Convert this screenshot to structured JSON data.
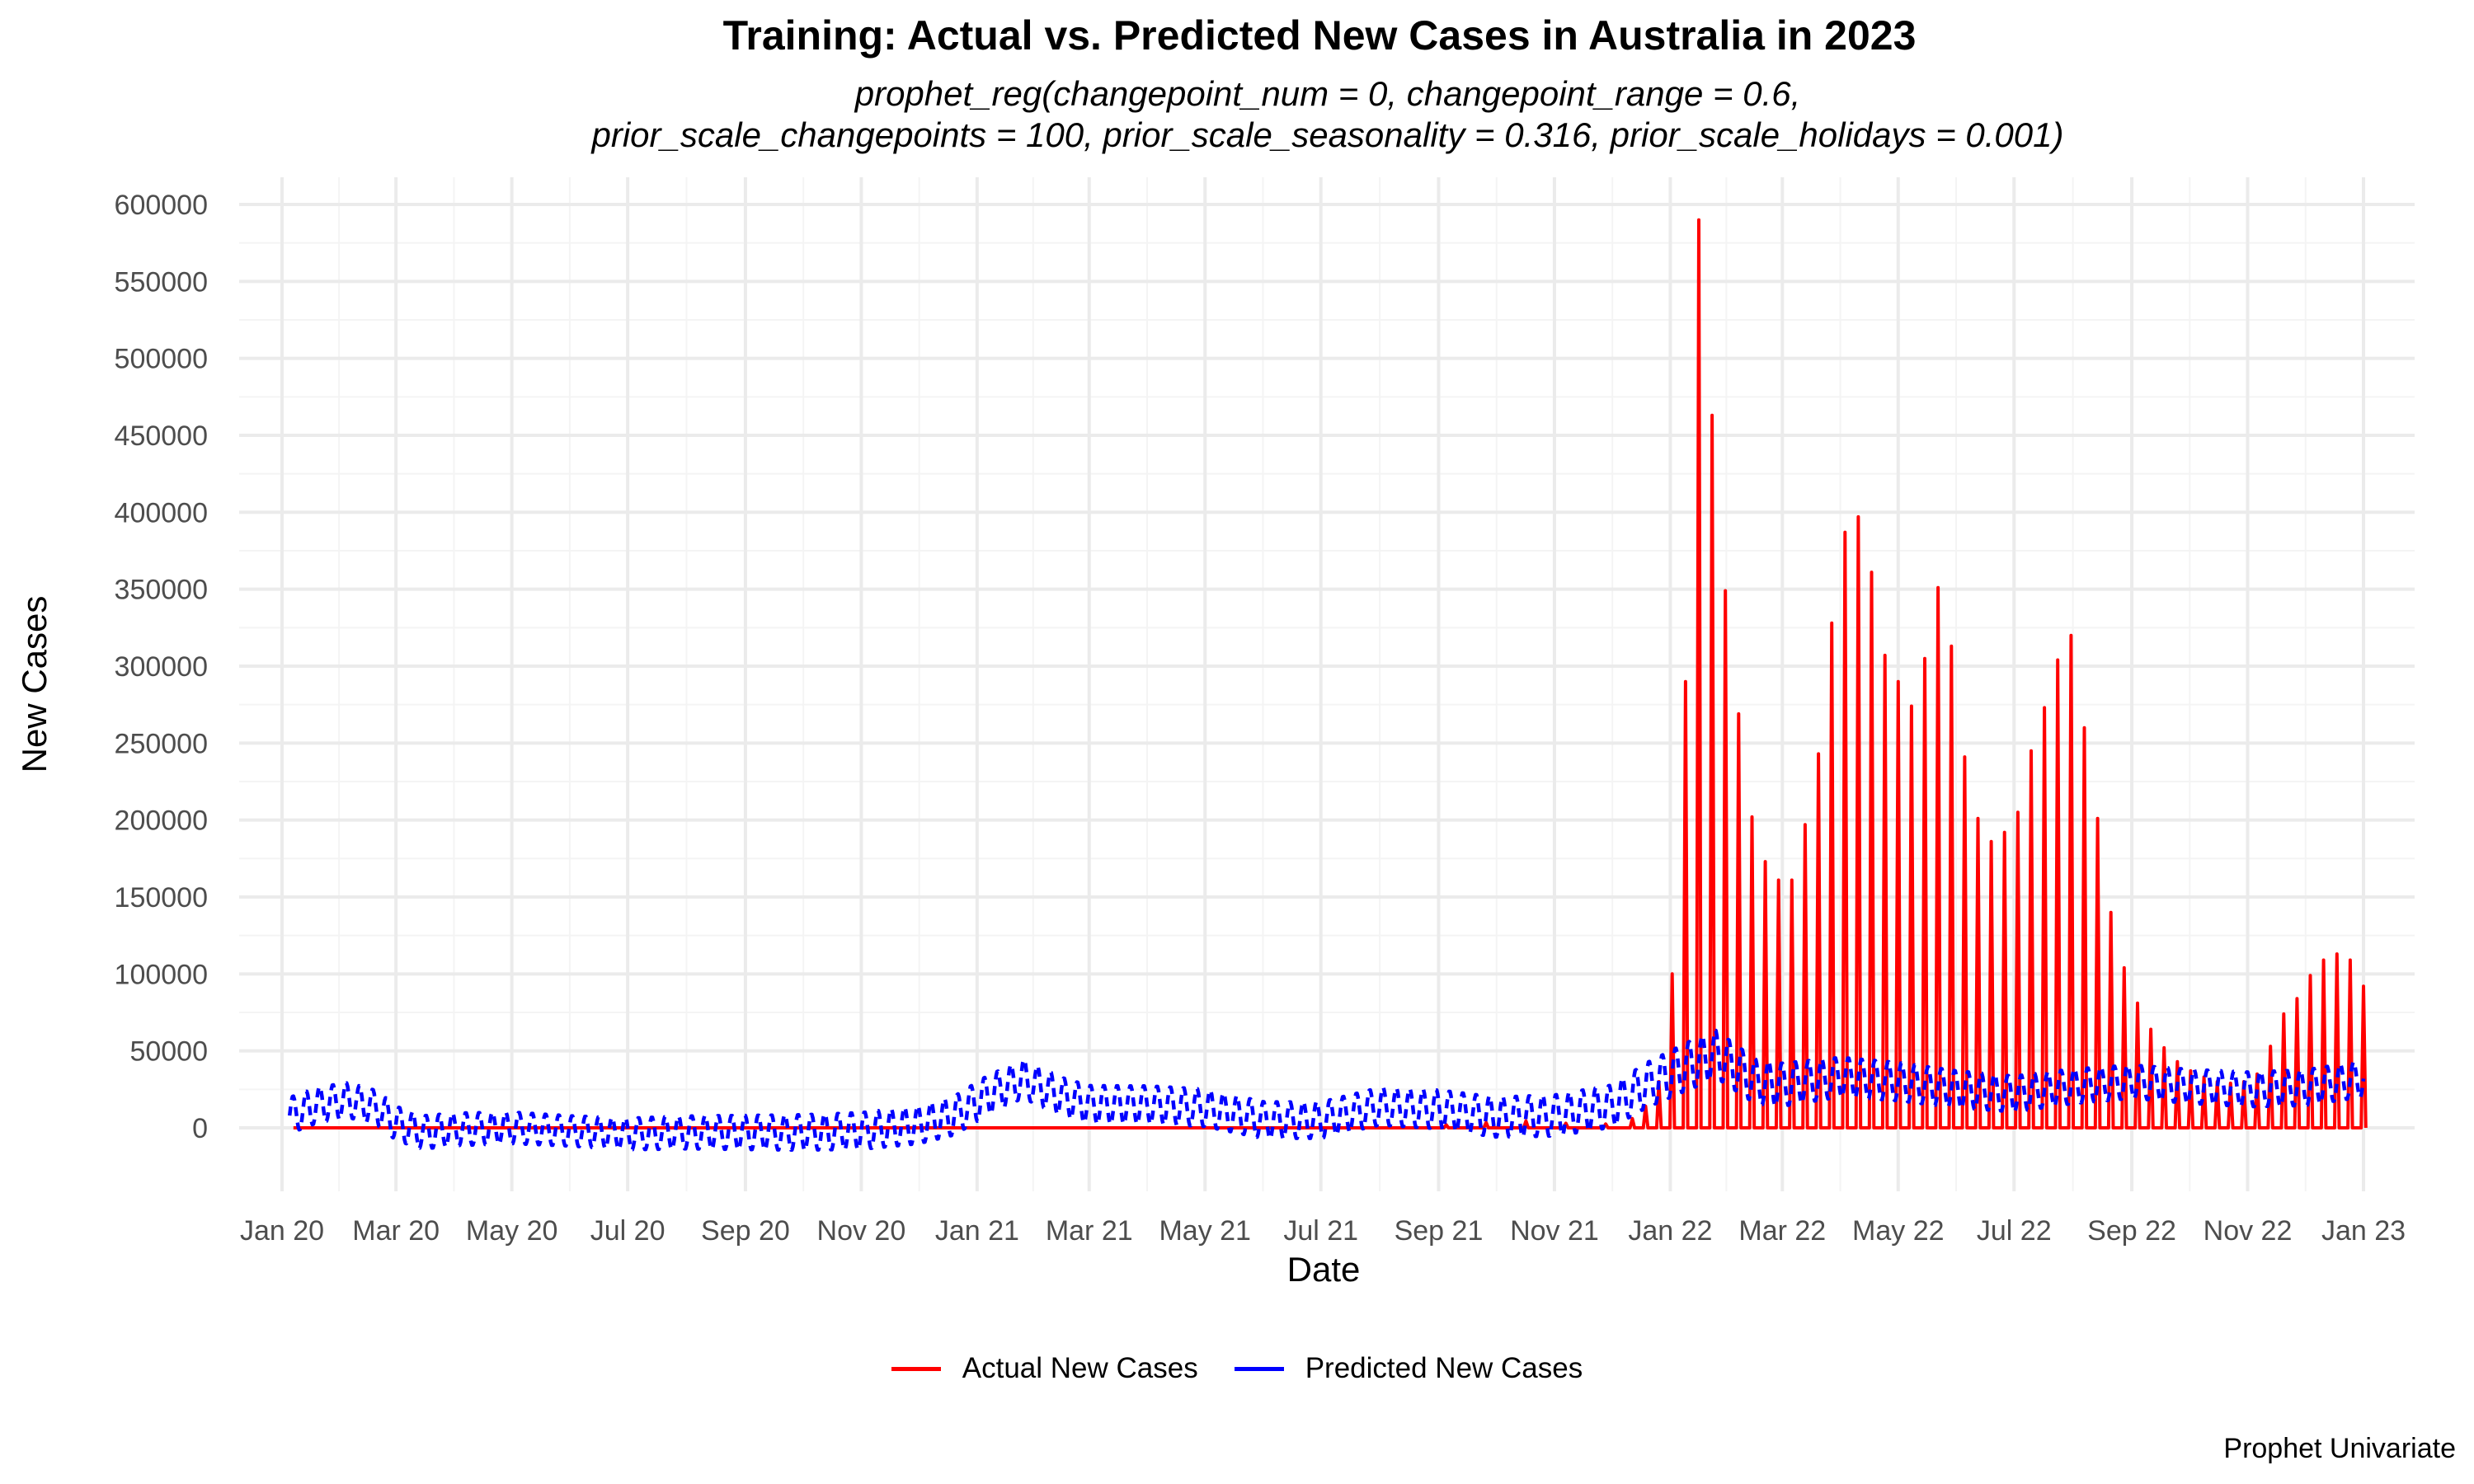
{
  "chart_data": {
    "type": "line",
    "title": "Training: Actual vs. Predicted New Cases in Australia in 2023",
    "subtitle": [
      "prophet_reg(changepoint_num = 0, changepoint_range = 0.6,",
      "prior_scale_changepoints = 100, prior_scale_seasonality = 0.316, prior_scale_holidays = 0.001)"
    ],
    "xlabel": "Date",
    "ylabel": "New Cases",
    "caption": "Prophet Univariate",
    "xlim": [
      "2020-01-01",
      "2023-01-01"
    ],
    "ylim": [
      0,
      600000
    ],
    "yticks": [
      0,
      50000,
      100000,
      150000,
      200000,
      250000,
      300000,
      350000,
      400000,
      450000,
      500000,
      550000,
      600000
    ],
    "xticks": [
      {
        "date": "2020-01-01",
        "label": "Jan 20"
      },
      {
        "date": "2020-03-01",
        "label": "Mar 20"
      },
      {
        "date": "2020-05-01",
        "label": "May 20"
      },
      {
        "date": "2020-07-01",
        "label": "Jul 20"
      },
      {
        "date": "2020-09-01",
        "label": "Sep 20"
      },
      {
        "date": "2020-11-01",
        "label": "Nov 20"
      },
      {
        "date": "2021-01-01",
        "label": "Jan 21"
      },
      {
        "date": "2021-03-01",
        "label": "Mar 21"
      },
      {
        "date": "2021-05-01",
        "label": "May 21"
      },
      {
        "date": "2021-07-01",
        "label": "Jul 21"
      },
      {
        "date": "2021-09-01",
        "label": "Sep 21"
      },
      {
        "date": "2021-11-01",
        "label": "Nov 21"
      },
      {
        "date": "2022-01-01",
        "label": "Jan 22"
      },
      {
        "date": "2022-03-01",
        "label": "Mar 22"
      },
      {
        "date": "2022-05-01",
        "label": "May 22"
      },
      {
        "date": "2022-07-01",
        "label": "Jul 22"
      },
      {
        "date": "2022-09-01",
        "label": "Sep 22"
      },
      {
        "date": "2022-11-01",
        "label": "Nov 22"
      },
      {
        "date": "2023-01-01",
        "label": "Jan 23"
      }
    ],
    "grid": true,
    "legend_position": "bottom",
    "series": [
      {
        "name": "Actual New Cases",
        "color": "#ff0000",
        "style": "weekly-spikes",
        "points": [
          [
            "2021-09-05",
            2000
          ],
          [
            "2021-09-26",
            3500
          ],
          [
            "2021-10-17",
            4500
          ],
          [
            "2021-11-07",
            3000
          ],
          [
            "2021-11-28",
            2500
          ],
          [
            "2021-12-12",
            6000
          ],
          [
            "2021-12-19",
            14000
          ],
          [
            "2021-12-26",
            30000
          ],
          [
            "2022-01-02",
            100000
          ],
          [
            "2022-01-09",
            290000
          ],
          [
            "2022-01-16",
            590000
          ],
          [
            "2022-01-23",
            463000
          ],
          [
            "2022-01-30",
            349000
          ],
          [
            "2022-02-06",
            269000
          ],
          [
            "2022-02-13",
            202000
          ],
          [
            "2022-02-20",
            173000
          ],
          [
            "2022-02-27",
            161000
          ],
          [
            "2022-03-06",
            161000
          ],
          [
            "2022-03-13",
            197000
          ],
          [
            "2022-03-20",
            243000
          ],
          [
            "2022-03-27",
            328000
          ],
          [
            "2022-04-03",
            387000
          ],
          [
            "2022-04-10",
            397000
          ],
          [
            "2022-04-17",
            361000
          ],
          [
            "2022-04-24",
            307000
          ],
          [
            "2022-05-01",
            290000
          ],
          [
            "2022-05-08",
            274000
          ],
          [
            "2022-05-15",
            305000
          ],
          [
            "2022-05-22",
            351000
          ],
          [
            "2022-05-29",
            313000
          ],
          [
            "2022-06-05",
            241000
          ],
          [
            "2022-06-12",
            201000
          ],
          [
            "2022-06-19",
            186000
          ],
          [
            "2022-06-26",
            192000
          ],
          [
            "2022-07-03",
            205000
          ],
          [
            "2022-07-10",
            245000
          ],
          [
            "2022-07-17",
            273000
          ],
          [
            "2022-07-24",
            304000
          ],
          [
            "2022-07-31",
            320000
          ],
          [
            "2022-08-07",
            260000
          ],
          [
            "2022-08-14",
            201000
          ],
          [
            "2022-08-21",
            140000
          ],
          [
            "2022-08-28",
            104000
          ],
          [
            "2022-09-04",
            81000
          ],
          [
            "2022-09-11",
            64000
          ],
          [
            "2022-09-18",
            52000
          ],
          [
            "2022-09-25",
            43000
          ],
          [
            "2022-10-02",
            37000
          ],
          [
            "2022-10-09",
            33000
          ],
          [
            "2022-10-16",
            30000
          ],
          [
            "2022-10-23",
            29000
          ],
          [
            "2022-10-30",
            30000
          ],
          [
            "2022-11-06",
            35000
          ],
          [
            "2022-11-13",
            53000
          ],
          [
            "2022-11-20",
            74000
          ],
          [
            "2022-11-27",
            84000
          ],
          [
            "2022-12-04",
            99000
          ],
          [
            "2022-12-11",
            109000
          ],
          [
            "2022-12-18",
            113000
          ],
          [
            "2022-12-25",
            109000
          ],
          [
            "2023-01-01",
            92000
          ]
        ]
      },
      {
        "name": "Predicted New Cases",
        "color": "#0000ff",
        "style": "dashed",
        "trend": [
          [
            "2020-01-05",
            8000
          ],
          [
            "2020-01-20",
            15000
          ],
          [
            "2020-02-05",
            18000
          ],
          [
            "2020-02-20",
            13000
          ],
          [
            "2020-03-01",
            3000
          ],
          [
            "2020-03-15",
            -3000
          ],
          [
            "2020-04-01",
            -1000
          ],
          [
            "2020-05-01",
            0
          ],
          [
            "2020-06-01",
            -2000
          ],
          [
            "2020-07-01",
            -4000
          ],
          [
            "2020-08-01",
            -3000
          ],
          [
            "2020-09-01",
            -3000
          ],
          [
            "2020-10-01",
            -3000
          ],
          [
            "2020-11-01",
            -2000
          ],
          [
            "2020-12-01",
            2000
          ],
          [
            "2020-12-20",
            8000
          ],
          [
            "2021-01-05",
            20000
          ],
          [
            "2021-01-25",
            32000
          ],
          [
            "2021-02-15",
            20000
          ],
          [
            "2021-03-01",
            15000
          ],
          [
            "2021-04-01",
            15000
          ],
          [
            "2021-05-01",
            13000
          ],
          [
            "2021-06-01",
            5000
          ],
          [
            "2021-07-01",
            5000
          ],
          [
            "2021-08-01",
            14000
          ],
          [
            "2021-09-01",
            12000
          ],
          [
            "2021-10-01",
            7000
          ],
          [
            "2021-11-01",
            8000
          ],
          [
            "2021-12-01",
            14000
          ],
          [
            "2021-12-20",
            28000
          ],
          [
            "2022-01-10",
            40000
          ],
          [
            "2022-01-25",
            48000
          ],
          [
            "2022-02-15",
            30000
          ],
          [
            "2022-03-01",
            28000
          ],
          [
            "2022-04-01",
            33000
          ],
          [
            "2022-05-01",
            30000
          ],
          [
            "2022-06-01",
            25000
          ],
          [
            "2022-07-01",
            22000
          ],
          [
            "2022-08-01",
            27000
          ],
          [
            "2022-09-01",
            30000
          ],
          [
            "2022-10-01",
            27000
          ],
          [
            "2022-11-01",
            25000
          ],
          [
            "2022-12-01",
            26000
          ],
          [
            "2023-01-01",
            32000
          ]
        ],
        "amplitude": [
          [
            "2020-01-01",
            12000
          ],
          [
            "2020-06-01",
            10000
          ],
          [
            "2021-01-01",
            13000
          ],
          [
            "2021-07-01",
            12000
          ],
          [
            "2021-12-01",
            14000
          ],
          [
            "2022-01-15",
            16000
          ],
          [
            "2022-04-01",
            13000
          ],
          [
            "2022-09-01",
            11000
          ],
          [
            "2023-01-01",
            12000
          ]
        ]
      }
    ]
  }
}
